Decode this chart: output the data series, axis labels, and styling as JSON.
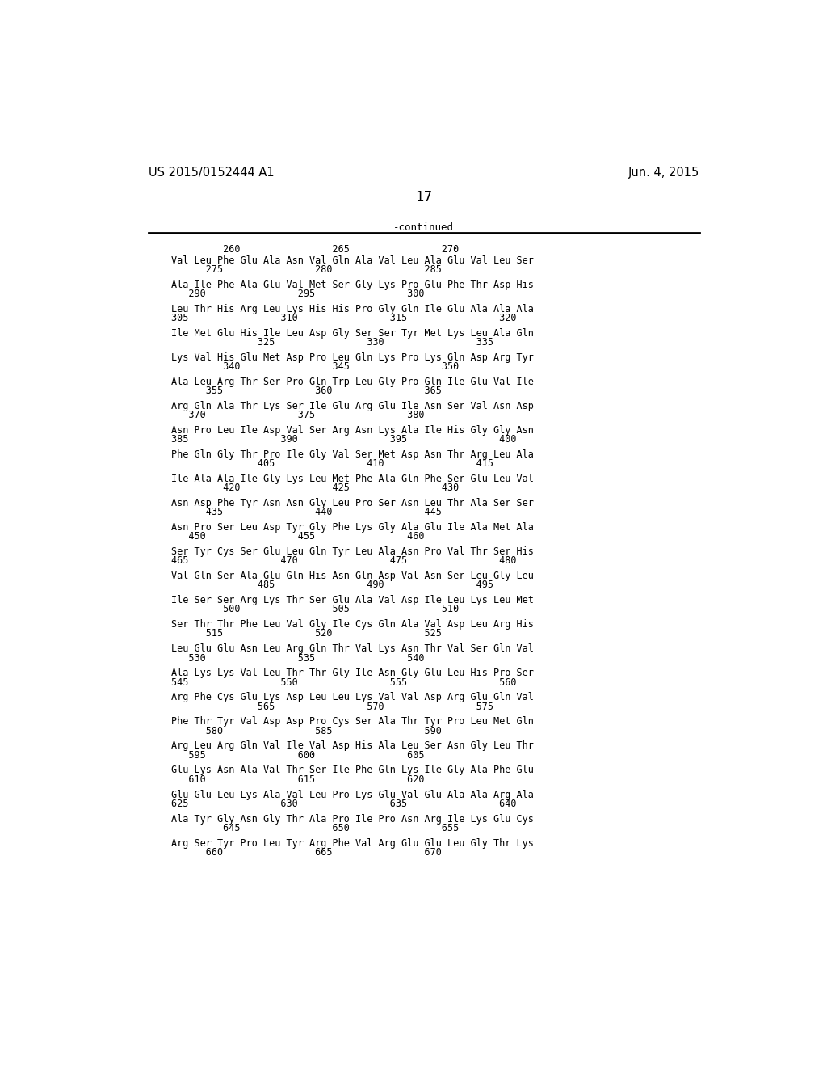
{
  "header_left": "US 2015/0152444 A1",
  "header_right": "Jun. 4, 2015",
  "page_number": "17",
  "continued_label": "-continued",
  "background_color": "#ffffff",
  "text_color": "#000000",
  "seq_blocks": [
    [
      "Val Leu Phe Glu Ala Asn Val Gln Ala Val Leu Ala Glu Val Leu Ser",
      "      275                280                285"
    ],
    [
      "Ala Ile Phe Ala Glu Val Met Ser Gly Lys Pro Glu Phe Thr Asp His",
      "   290                295                300"
    ],
    [
      "Leu Thr His Arg Leu Lys His His Pro Gly Gln Ile Glu Ala Ala Ala",
      "305                310                315                320"
    ],
    [
      "Ile Met Glu His Ile Leu Asp Gly Ser Ser Tyr Met Lys Leu Ala Gln",
      "               325                330                335"
    ],
    [
      "Lys Val His Glu Met Asp Pro Leu Gln Lys Pro Lys Gln Asp Arg Tyr",
      "         340                345                350"
    ],
    [
      "Ala Leu Arg Thr Ser Pro Gln Trp Leu Gly Pro Gln Ile Glu Val Ile",
      "      355                360                365"
    ],
    [
      "Arg Gln Ala Thr Lys Ser Ile Glu Arg Glu Ile Asn Ser Val Asn Asp",
      "   370                375                380"
    ],
    [
      "Asn Pro Leu Ile Asp Val Ser Arg Asn Lys Ala Ile His Gly Gly Asn",
      "385                390                395                400"
    ],
    [
      "Phe Gln Gly Thr Pro Ile Gly Val Ser Met Asp Asn Thr Arg Leu Ala",
      "               405                410                415"
    ],
    [
      "Ile Ala Ala Ile Gly Lys Leu Met Phe Ala Gln Phe Ser Glu Leu Val",
      "         420                425                430"
    ],
    [
      "Asn Asp Phe Tyr Asn Asn Gly Leu Pro Ser Asn Leu Thr Ala Ser Ser",
      "      435                440                445"
    ],
    [
      "Asn Pro Ser Leu Asp Tyr Gly Phe Lys Gly Ala Glu Ile Ala Met Ala",
      "   450                455                460"
    ],
    [
      "Ser Tyr Cys Ser Glu Leu Gln Tyr Leu Ala Asn Pro Val Thr Ser His",
      "465                470                475                480"
    ],
    [
      "Val Gln Ser Ala Glu Gln His Asn Gln Asp Val Asn Ser Leu Gly Leu",
      "               485                490                495"
    ],
    [
      "Ile Ser Ser Arg Lys Thr Ser Glu Ala Val Asp Ile Leu Lys Leu Met",
      "         500                505                510"
    ],
    [
      "Ser Thr Thr Phe Leu Val Gly Ile Cys Gln Ala Val Asp Leu Arg His",
      "      515                520                525"
    ],
    [
      "Leu Glu Glu Asn Leu Arg Gln Thr Val Lys Asn Thr Val Ser Gln Val",
      "   530                535                540"
    ],
    [
      "Ala Lys Lys Val Leu Thr Thr Gly Ile Asn Gly Glu Leu His Pro Ser",
      "545                550                555                560"
    ],
    [
      "Arg Phe Cys Glu Lys Asp Leu Leu Lys Val Val Asp Arg Glu Gln Val",
      "               565                570                575"
    ],
    [
      "Phe Thr Tyr Val Asp Asp Pro Cys Ser Ala Thr Tyr Pro Leu Met Gln",
      "      580                585                590"
    ],
    [
      "Arg Leu Arg Gln Val Ile Val Asp His Ala Leu Ser Asn Gly Leu Thr",
      "   595                600                605"
    ],
    [
      "Glu Lys Asn Ala Val Thr Ser Ile Phe Gln Lys Ile Gly Ala Phe Glu",
      "   610                615                620"
    ],
    [
      "Glu Glu Leu Lys Ala Val Leu Pro Lys Glu Val Glu Ala Ala Arg Ala",
      "625                630                635                640"
    ],
    [
      "Ala Tyr Gly Asn Gly Thr Ala Pro Ile Pro Asn Arg Ile Lys Glu Cys",
      "         645                650                655"
    ],
    [
      "Arg Ser Tyr Pro Leu Tyr Arg Phe Val Arg Glu Glu Leu Gly Thr Lys",
      "      660                665                670"
    ]
  ],
  "first_num_line": "         260                265                270"
}
